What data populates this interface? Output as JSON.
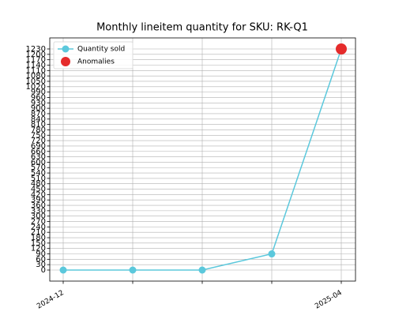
{
  "chart_data": {
    "type": "line",
    "title": "Monthly lineitem quantity for SKU: RK-Q1",
    "categories": [
      "2024-12",
      null,
      null,
      null,
      "2025-04"
    ],
    "series": [
      {
        "name": "Quantity sold",
        "color": "#5bc8dc",
        "values": [
          0,
          0,
          0,
          90,
          1230
        ]
      },
      {
        "name": "Anomalies",
        "color": "#e52b2b",
        "values": [
          null,
          null,
          null,
          null,
          1230
        ],
        "marker_only": true
      }
    ],
    "ylim": [
      -61.5,
      1291.5
    ],
    "yticks": [
      0,
      30,
      60,
      90,
      120,
      150,
      180,
      210,
      240,
      270,
      300,
      330,
      360,
      390,
      420,
      450,
      480,
      510,
      540,
      570,
      600,
      630,
      660,
      690,
      720,
      750,
      780,
      810,
      840,
      870,
      900,
      930,
      960,
      990,
      1020,
      1050,
      1080,
      1110,
      1140,
      1170,
      1200,
      1230
    ],
    "grid": true,
    "legend": "upper-left"
  }
}
